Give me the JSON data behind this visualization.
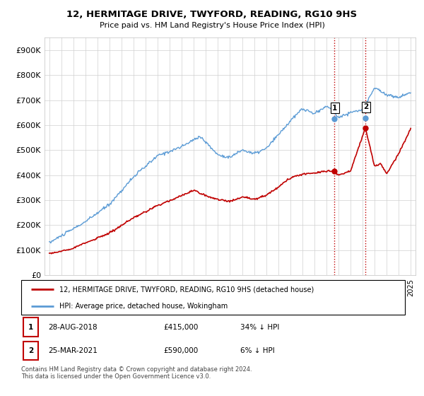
{
  "title": "12, HERMITAGE DRIVE, TWYFORD, READING, RG10 9HS",
  "subtitle": "Price paid vs. HM Land Registry's House Price Index (HPI)",
  "legend_line1": "12, HERMITAGE DRIVE, TWYFORD, READING, RG10 9HS (detached house)",
  "legend_line2": "HPI: Average price, detached house, Wokingham",
  "annotation1": {
    "num": "1",
    "date": "28-AUG-2018",
    "price": "£415,000",
    "pct": "34% ↓ HPI"
  },
  "annotation2": {
    "num": "2",
    "date": "25-MAR-2021",
    "price": "£590,000",
    "pct": "6% ↓ HPI"
  },
  "footer": "Contains HM Land Registry data © Crown copyright and database right 2024.\nThis data is licensed under the Open Government Licence v3.0.",
  "ylim": [
    0,
    950000
  ],
  "yticks": [
    0,
    100000,
    200000,
    300000,
    400000,
    500000,
    600000,
    700000,
    800000,
    900000
  ],
  "hpi_color": "#5b9bd5",
  "price_color": "#c00000",
  "vline_color": "#c00000",
  "background_color": "#ffffff",
  "marker1_x": 2018.65,
  "marker1_y": 415000,
  "marker2_x": 2021.23,
  "marker2_y": 590000,
  "marker1_hpi_y": 625000,
  "marker2_hpi_y": 628000,
  "xmin": 1995,
  "xmax": 2025
}
